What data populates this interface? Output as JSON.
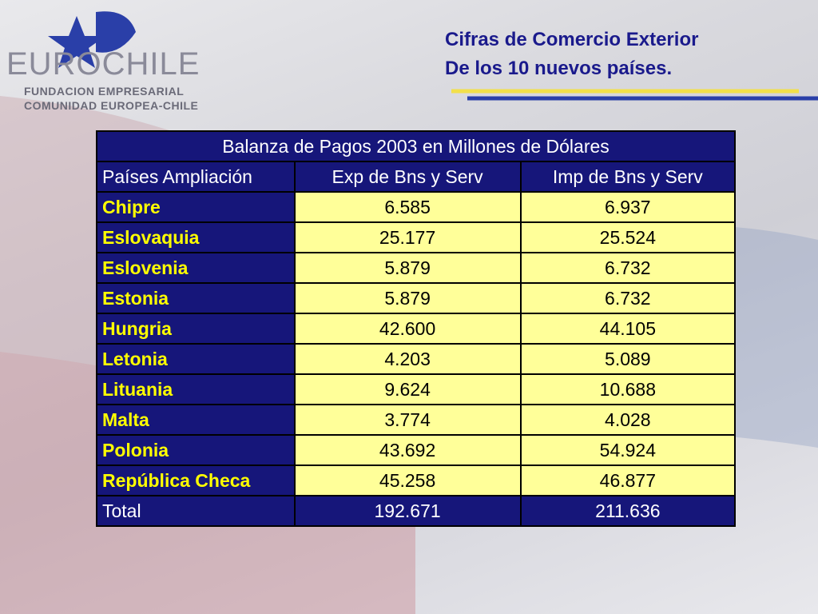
{
  "logo": {
    "name": "EUROCHILE",
    "line1": "FUNDACION EMPRESARIAL",
    "line2": "COMUNIDAD EUROPEA-CHILE"
  },
  "header": {
    "title_line1": "Cifras de Comercio Exterior",
    "title_line2": "De los 10 nuevos países."
  },
  "table": {
    "title": "Balanza de Pagos 2003 en Millones de Dólares",
    "columns": [
      "Países Ampliación",
      "Exp de Bns y Serv",
      "Imp de Bns y Serv"
    ],
    "rows": [
      [
        "Chipre",
        "6.585",
        "6.937"
      ],
      [
        "Eslovaquia",
        "25.177",
        "25.524"
      ],
      [
        "Eslovenia",
        "5.879",
        "6.732"
      ],
      [
        "Estonia",
        "5.879",
        "6.732"
      ],
      [
        "Hungria",
        "42.600",
        "44.105"
      ],
      [
        "Letonia",
        "4.203",
        "5.089"
      ],
      [
        "Lituania",
        "9.624",
        "10.688"
      ],
      [
        "Malta",
        "3.774",
        "4.028"
      ],
      [
        "Polonia",
        "43.692",
        "54.924"
      ],
      [
        "República Checa",
        "45.258",
        "46.877"
      ]
    ],
    "total": [
      "Total",
      "192.671",
      "211.636"
    ]
  }
}
